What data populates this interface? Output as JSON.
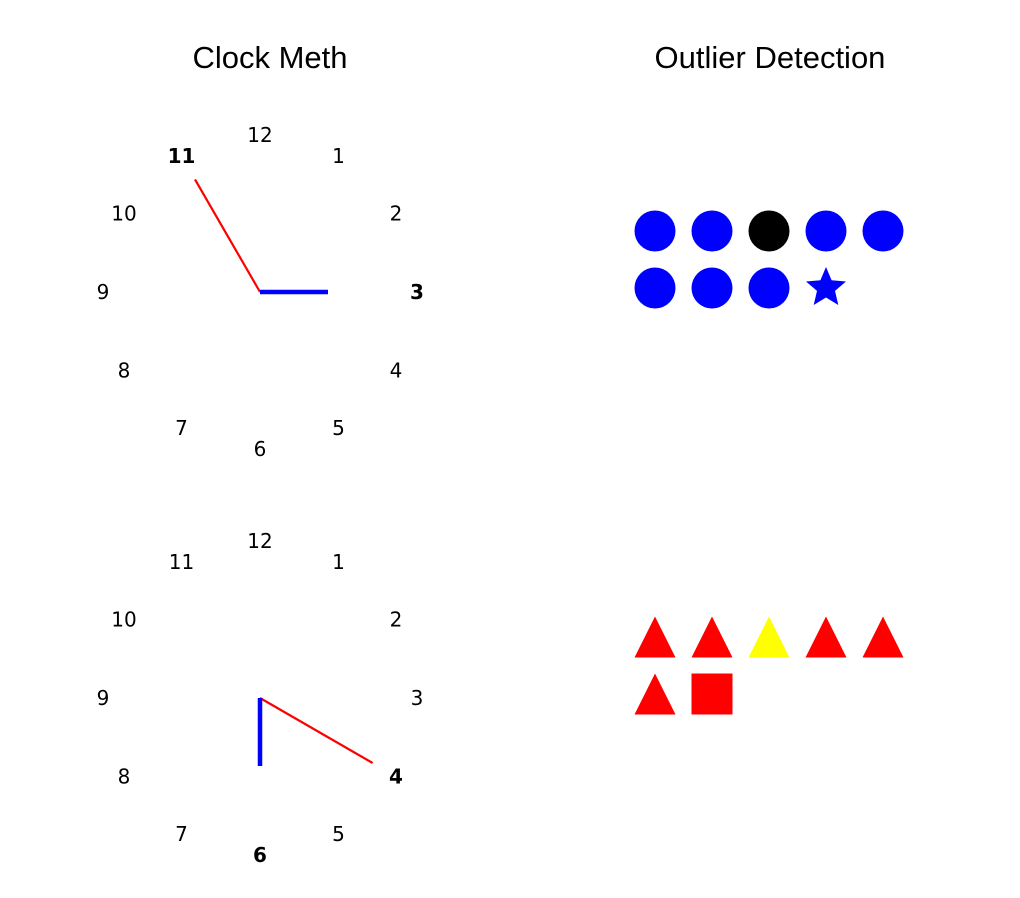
{
  "titles": {
    "left": "Clock Meth",
    "right": "Outlier Detection"
  },
  "colors": {
    "red": "#ff0000",
    "blue": "#0000ff",
    "black": "#000000",
    "yellow": "#ffff00"
  },
  "clocks": [
    {
      "numbers": [
        "12",
        "1",
        "2",
        "3",
        "4",
        "5",
        "6",
        "7",
        "8",
        "9",
        "10",
        "11"
      ],
      "hour_hand": {
        "points_to": 3,
        "color": "blue"
      },
      "minute_hand": {
        "points_to": 11,
        "color": "red"
      },
      "highlighted": [
        {
          "number": "11",
          "color": "red"
        },
        {
          "number": "3",
          "color": "blue"
        }
      ]
    },
    {
      "numbers": [
        "12",
        "1",
        "2",
        "3",
        "4",
        "5",
        "6",
        "7",
        "8",
        "9",
        "10",
        "11"
      ],
      "hour_hand": {
        "points_to": 6,
        "color": "blue"
      },
      "minute_hand": {
        "points_to": 4,
        "color": "red"
      },
      "highlighted": [
        {
          "number": "4",
          "color": "red"
        },
        {
          "number": "6",
          "color": "blue"
        }
      ]
    }
  ],
  "outlier_groups": [
    {
      "rows": [
        [
          {
            "shape": "circle",
            "color": "blue"
          },
          {
            "shape": "circle",
            "color": "blue"
          },
          {
            "shape": "circle",
            "color": "black"
          },
          {
            "shape": "circle",
            "color": "blue"
          },
          {
            "shape": "circle",
            "color": "blue"
          }
        ],
        [
          {
            "shape": "circle",
            "color": "blue"
          },
          {
            "shape": "circle",
            "color": "blue"
          },
          {
            "shape": "circle",
            "color": "blue"
          },
          {
            "shape": "star",
            "color": "blue"
          }
        ]
      ]
    },
    {
      "rows": [
        [
          {
            "shape": "triangle",
            "color": "red"
          },
          {
            "shape": "triangle",
            "color": "red"
          },
          {
            "shape": "triangle",
            "color": "yellow"
          },
          {
            "shape": "triangle",
            "color": "red"
          },
          {
            "shape": "triangle",
            "color": "red"
          }
        ],
        [
          {
            "shape": "triangle",
            "color": "red"
          },
          {
            "shape": "square",
            "color": "red"
          }
        ]
      ]
    }
  ]
}
